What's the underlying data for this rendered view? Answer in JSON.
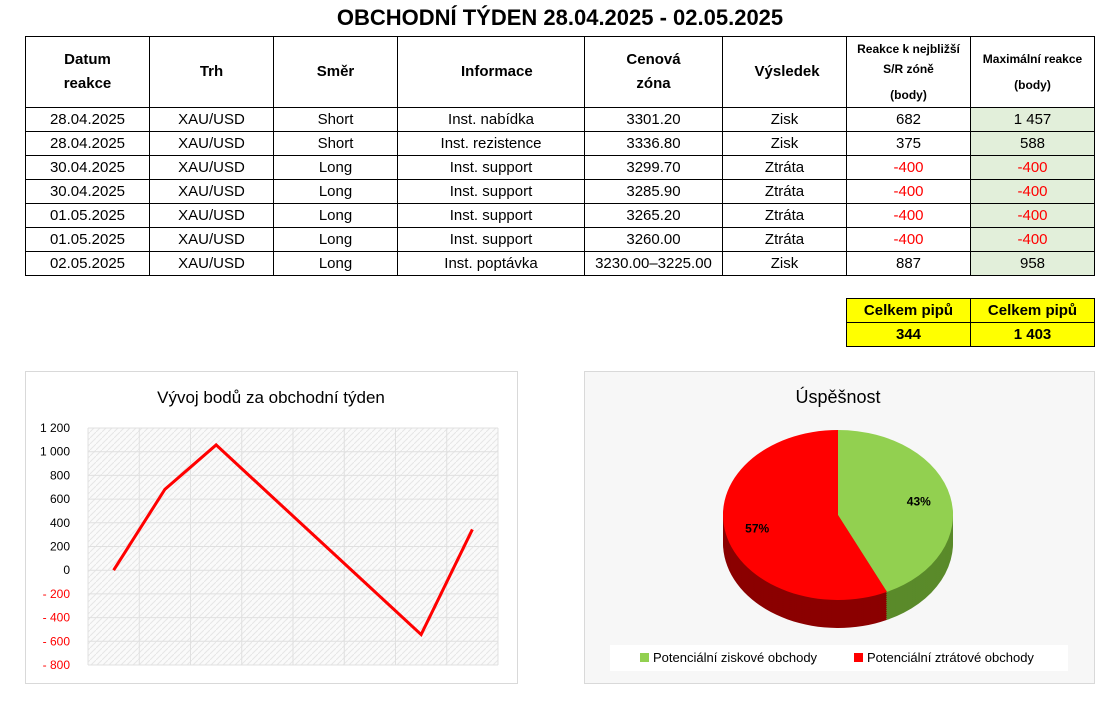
{
  "title": "OBCHODNÍ TÝDEN 28.04.2025 - 02.05.2025",
  "table": {
    "header": [
      "Datum reakce",
      "Trh",
      "Směr",
      "Informace",
      "Cenová zóna",
      "Výsledek",
      [
        "Reakce k nejbližší S/R zóně",
        "(body)"
      ],
      [
        "Maximální reakce",
        "(body)"
      ]
    ],
    "rows": [
      [
        "28.04.2025",
        "XAU/USD",
        "Short",
        "Inst. nabídka",
        "3301.20",
        "Zisk",
        "682",
        "1 457"
      ],
      [
        "28.04.2025",
        "XAU/USD",
        "Short",
        "Inst. rezistence",
        "3336.80",
        "Zisk",
        "375",
        "588"
      ],
      [
        "30.04.2025",
        "XAU/USD",
        "Long",
        "Inst. support",
        "3299.70",
        "Ztráta",
        "-400",
        "-400"
      ],
      [
        "30.04.2025",
        "XAU/USD",
        "Long",
        "Inst. support",
        "3285.90",
        "Ztráta",
        "-400",
        "-400"
      ],
      [
        "01.05.2025",
        "XAU/USD",
        "Long",
        "Inst. support",
        "3265.20",
        "Ztráta",
        "-400",
        "-400"
      ],
      [
        "01.05.2025",
        "XAU/USD",
        "Long",
        "Inst. support",
        "3260.00",
        "Ztráta",
        "-400",
        "-400"
      ],
      [
        "02.05.2025",
        "XAU/USD",
        "Long",
        "Inst. poptávka",
        "3230.00–3225.00",
        "Zisk",
        "887",
        "958"
      ]
    ]
  },
  "totals": [
    {
      "label": "Celkem pipů",
      "value": "344"
    },
    {
      "label": "Celkem pipů",
      "value": "1 403"
    }
  ],
  "chart_data": [
    {
      "type": "line",
      "title": "Vývoj bodů za obchodní týden",
      "values": [
        0,
        682,
        1057,
        657,
        257,
        -143,
        -543,
        344
      ],
      "color": "#ff0000",
      "ylim": [
        -800,
        1200
      ],
      "yticks": [
        {
          "value": -800,
          "label": "- 800"
        },
        {
          "value": -600,
          "label": "- 600"
        },
        {
          "value": -400,
          "label": "- 400"
        },
        {
          "value": -200,
          "label": "- 200"
        },
        0,
        200,
        400,
        600,
        800,
        {
          "value": 1000,
          "label": "1 000"
        },
        {
          "value": 1200,
          "label": "1 200"
        }
      ],
      "grid": true
    },
    {
      "type": "pie",
      "title": "Úspěšnost",
      "categories": [
        "Potenciální ziskové obchody",
        "Potenciální ztrátové obchody"
      ],
      "values": [
        43,
        57
      ],
      "value_labels": [
        "43%",
        "57%"
      ],
      "colors": [
        "#92d050",
        "#ff0000"
      ],
      "legend": "bottom"
    }
  ]
}
